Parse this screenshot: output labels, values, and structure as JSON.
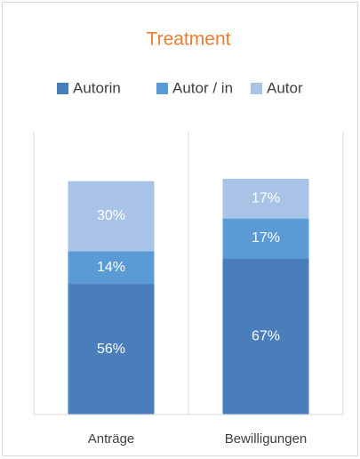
{
  "chart_data": {
    "type": "stacked-bar",
    "title": "Treatment",
    "categories": [
      "Anträge",
      "Bewilligungen"
    ],
    "series": [
      {
        "name": "Autorin",
        "color": "#4a7ebb",
        "values": [
          56,
          67
        ],
        "value_labels": [
          "56%",
          "67%"
        ]
      },
      {
        "name": "Autor / in",
        "color": "#5b9bd5",
        "values": [
          14,
          17
        ],
        "value_labels": [
          "14%",
          "17%"
        ]
      },
      {
        "name": "Autor",
        "color": "#a9c3e6",
        "values": [
          30,
          17
        ],
        "value_labels": [
          "30%",
          "17%"
        ]
      }
    ],
    "title_color": "#ed7d31"
  }
}
